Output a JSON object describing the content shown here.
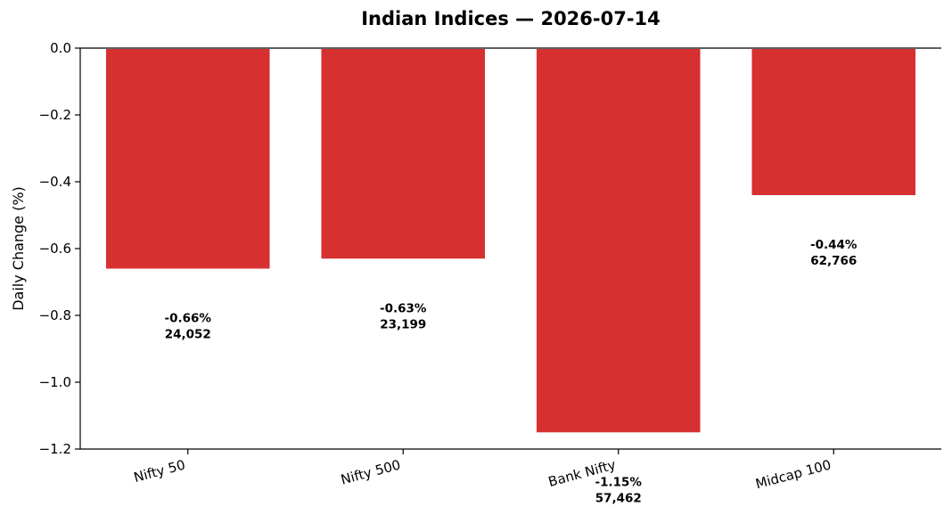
{
  "chart_data": {
    "type": "bar",
    "title": "Indian Indices — 2026-07-14",
    "xlabel": "",
    "ylabel": "Daily Change (%)",
    "categories": [
      "Nifty 50",
      "Nifty 500",
      "Bank Nifty",
      "Midcap 100"
    ],
    "values": [
      -0.66,
      -0.63,
      -1.15,
      -0.44
    ],
    "data_labels": [
      "-0.66%",
      "-0.63%",
      "-1.15%",
      "-0.44%"
    ],
    "index_levels": [
      "24,052",
      "23,199",
      "57,462",
      "62,766"
    ],
    "ylim": [
      -1.2,
      0.0
    ],
    "yticks": [
      0.0,
      -0.2,
      -0.4,
      -0.6,
      -0.8,
      -1.0,
      -1.2
    ],
    "ytick_labels": [
      "0.0",
      "−0.2",
      "−0.4",
      "−0.6",
      "−0.8",
      "−1.0",
      "−1.2"
    ],
    "bar_color": "#d63031",
    "grid": false,
    "legend": "none"
  }
}
